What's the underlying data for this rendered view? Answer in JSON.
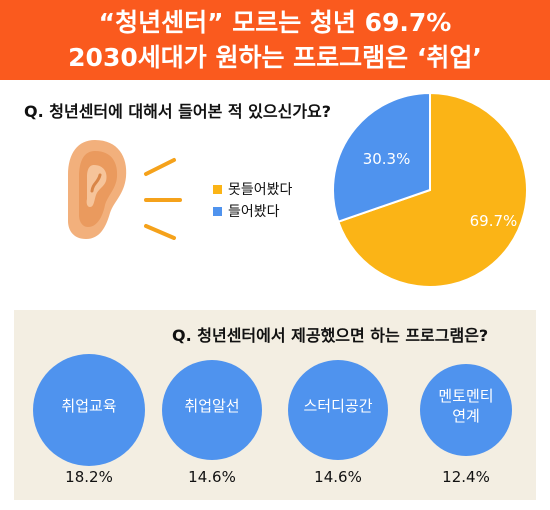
{
  "header": {
    "line1": "“청년센터” 모르는 청년 69.7%",
    "line2": "2030세대가 원하는 프로그램은 ‘취업’"
  },
  "question1": "Q. 청년센터에 대해서 들어본 적 있으신가요?",
  "question2": "Q. 청년센터에서 제공했으면 하는 프로그램은?",
  "colors": {
    "header_bg": "#fa5a1e",
    "yellow": "#fbb416",
    "blue": "#4f93ee",
    "panel_bg": "#f3eee2"
  },
  "icons": [
    "ear-icon",
    "sound-waves-icon"
  ],
  "chart_data": [
    {
      "type": "pie",
      "title": "Q. 청년센터에 대해서 들어본 적 있으신가요?",
      "labels": [
        "못들어봤다",
        "들어봤다"
      ],
      "values": [
        69.7,
        30.3
      ],
      "value_labels": [
        "69.7%",
        "30.3%"
      ],
      "colors": [
        "#fbb416",
        "#4f93ee"
      ],
      "legend": "left"
    },
    {
      "type": "bubble",
      "title": "Q. 청년센터에서 제공했으면 하는 프로그램은?",
      "categories": [
        "취업교육",
        "취업알선",
        "스터디공간",
        "멘토멘티\n연계"
      ],
      "values": [
        18.2,
        14.6,
        14.6,
        12.4
      ],
      "value_labels": [
        "18.2%",
        "14.6%",
        "14.6%",
        "12.4%"
      ],
      "color": "#4f93ee"
    }
  ]
}
